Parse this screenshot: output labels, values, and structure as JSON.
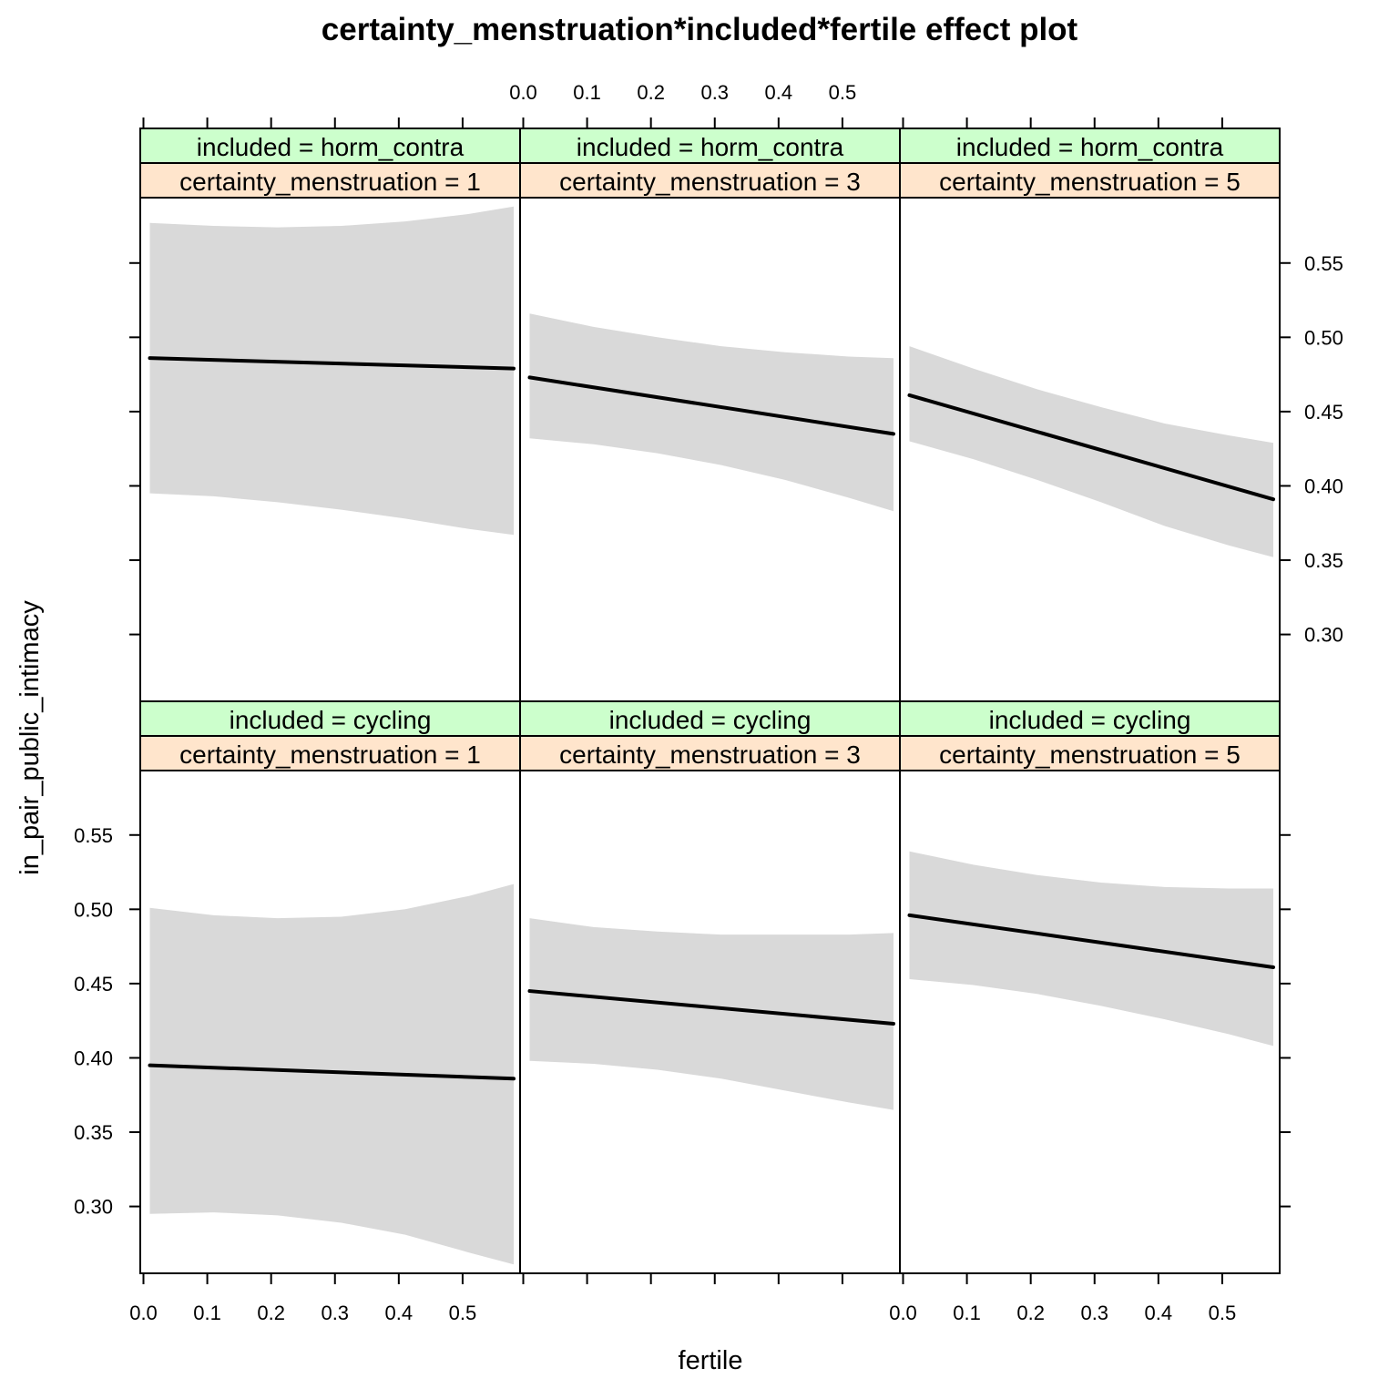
{
  "chart_data": {
    "type": "line",
    "title": "certainty_menstruation*included*fertile effect plot",
    "xlabel": "fertile",
    "ylabel": "in_pair_public_intimacy",
    "xlim": [
      -0.005,
      0.59
    ],
    "ylim": [
      0.255,
      0.594
    ],
    "x_ticks": [
      0.0,
      0.1,
      0.2,
      0.3,
      0.4,
      0.5
    ],
    "x_tick_labels": [
      "0.0",
      "0.1",
      "0.2",
      "0.3",
      "0.4",
      "0.5"
    ],
    "y_ticks": [
      0.3,
      0.35,
      0.4,
      0.45,
      0.5,
      0.55
    ],
    "y_tick_labels": [
      "0.30",
      "0.35",
      "0.40",
      "0.45",
      "0.50",
      "0.55"
    ],
    "layout": {
      "columns": 3,
      "rows": 2
    },
    "colors": {
      "strip_top": "#ccffcc",
      "strip_bottom": "#ffe5cc",
      "band": "#d9d9d9",
      "line": "#000000"
    },
    "panels": [
      {
        "included_strip": "included = horm_contra",
        "certainty_strip": "certainty_menstruation = 1",
        "col": 0,
        "row": 0,
        "x": [
          0.01,
          0.58
        ],
        "fit": [
          0.486,
          0.479
        ],
        "band_x": [
          0.01,
          0.11,
          0.21,
          0.31,
          0.41,
          0.51,
          0.58
        ],
        "band_lower": [
          0.395,
          0.393,
          0.389,
          0.384,
          0.378,
          0.371,
          0.367
        ],
        "band_upper": [
          0.577,
          0.575,
          0.574,
          0.575,
          0.578,
          0.583,
          0.588
        ]
      },
      {
        "included_strip": "included = horm_contra",
        "certainty_strip": "certainty_menstruation = 3",
        "col": 1,
        "row": 0,
        "x": [
          0.01,
          0.58
        ],
        "fit": [
          0.473,
          0.435
        ],
        "band_x": [
          0.01,
          0.11,
          0.21,
          0.31,
          0.41,
          0.51,
          0.58
        ],
        "band_lower": [
          0.432,
          0.428,
          0.422,
          0.414,
          0.404,
          0.392,
          0.383
        ],
        "band_upper": [
          0.516,
          0.507,
          0.5,
          0.494,
          0.49,
          0.487,
          0.486
        ]
      },
      {
        "included_strip": "included = horm_contra",
        "certainty_strip": "certainty_menstruation = 5",
        "col": 2,
        "row": 0,
        "x": [
          0.01,
          0.58
        ],
        "fit": [
          0.461,
          0.391
        ],
        "band_x": [
          0.01,
          0.11,
          0.21,
          0.31,
          0.41,
          0.51,
          0.58
        ],
        "band_lower": [
          0.43,
          0.418,
          0.404,
          0.389,
          0.373,
          0.36,
          0.352
        ],
        "band_upper": [
          0.494,
          0.479,
          0.465,
          0.453,
          0.442,
          0.434,
          0.429
        ]
      },
      {
        "included_strip": "included = cycling",
        "certainty_strip": "certainty_menstruation = 1",
        "col": 0,
        "row": 1,
        "x": [
          0.01,
          0.58
        ],
        "fit": [
          0.395,
          0.386
        ],
        "band_x": [
          0.01,
          0.11,
          0.21,
          0.31,
          0.41,
          0.51,
          0.58
        ],
        "band_lower": [
          0.295,
          0.296,
          0.294,
          0.289,
          0.281,
          0.269,
          0.261
        ],
        "band_upper": [
          0.501,
          0.496,
          0.494,
          0.495,
          0.5,
          0.509,
          0.517
        ]
      },
      {
        "included_strip": "included = cycling",
        "certainty_strip": "certainty_menstruation = 3",
        "col": 1,
        "row": 1,
        "x": [
          0.01,
          0.58
        ],
        "fit": [
          0.445,
          0.423
        ],
        "band_x": [
          0.01,
          0.11,
          0.21,
          0.31,
          0.41,
          0.51,
          0.58
        ],
        "band_lower": [
          0.398,
          0.396,
          0.392,
          0.386,
          0.378,
          0.37,
          0.365
        ],
        "band_upper": [
          0.494,
          0.488,
          0.485,
          0.483,
          0.483,
          0.483,
          0.484
        ]
      },
      {
        "included_strip": "included = cycling",
        "certainty_strip": "certainty_menstruation = 5",
        "col": 2,
        "row": 1,
        "x": [
          0.01,
          0.58
        ],
        "fit": [
          0.496,
          0.461
        ],
        "band_x": [
          0.01,
          0.11,
          0.21,
          0.31,
          0.41,
          0.51,
          0.58
        ],
        "band_lower": [
          0.453,
          0.449,
          0.443,
          0.435,
          0.426,
          0.416,
          0.408
        ],
        "band_upper": [
          0.539,
          0.53,
          0.523,
          0.518,
          0.515,
          0.514,
          0.514
        ]
      }
    ]
  }
}
